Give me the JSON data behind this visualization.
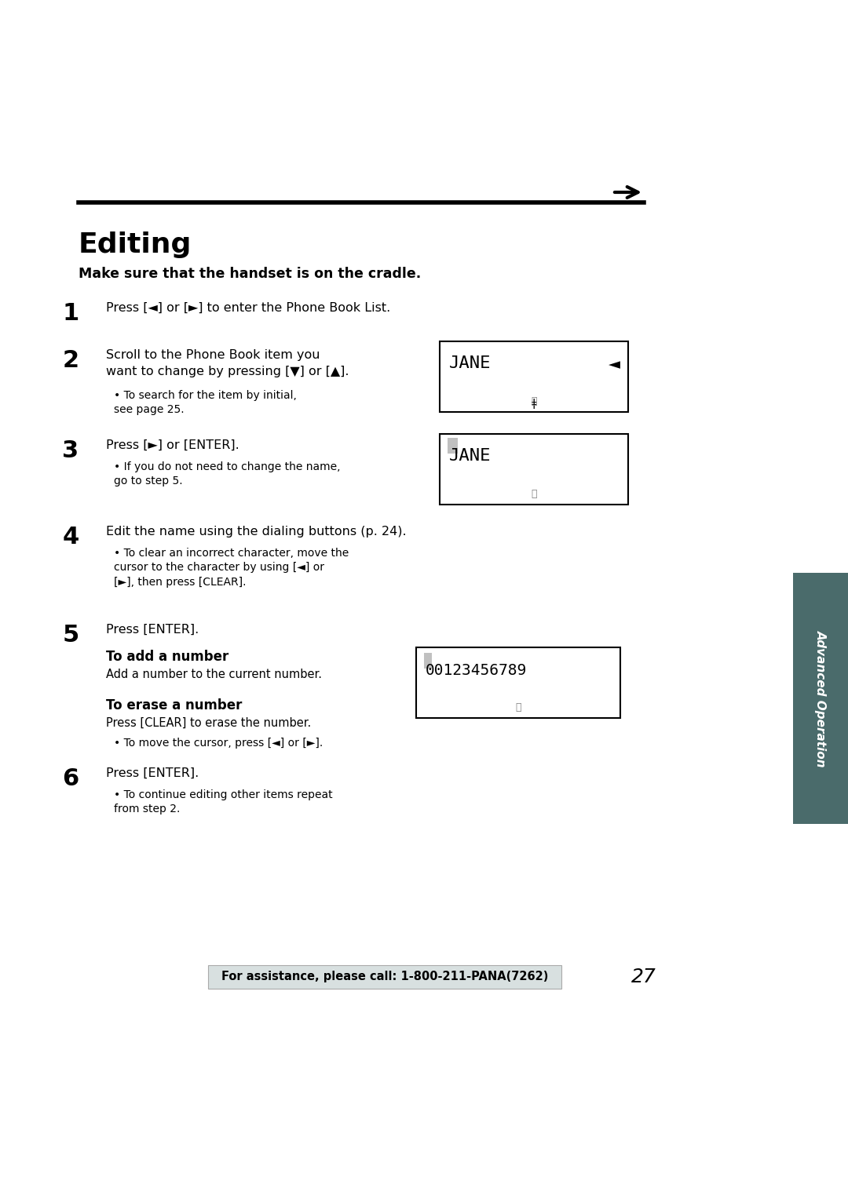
{
  "bg_color": "#ffffff",
  "page_number": "27",
  "title": "Editing",
  "subtitle": "Make sure that the handset is on the cradle.",
  "step1_num": "1",
  "step1_text": "Press [◄] or [►] to enter the Phone Book List.",
  "step2_num": "2",
  "step2_text": "Scroll to the Phone Book item you\nwant to change by pressing [▼] or [▲].",
  "step2_bullet": "To search for the item by initial,\nsee page 25.",
  "step2_display_line1": "JANE",
  "step2_display_arrow": "◄",
  "step3_num": "3",
  "step3_text": "Press [►] or [ENTER].",
  "step3_bullet": "If you do not need to change the name,\ngo to step 5.",
  "step3_display_line1": "JANE",
  "step4_num": "4",
  "step4_text": "Edit the name using the dialing buttons (p. 24).",
  "step4_bullet": "To clear an incorrect character, move the\ncursor to the character by using [◄] or\n[►], then press [CLEAR].",
  "step5_num": "5",
  "step5_text": "Press [ENTER].",
  "to_add_label": "To add a number",
  "to_add_text": "Add a number to the current number.",
  "to_erase_label": "To erase a number",
  "to_erase_text": "Press [CLEAR] to erase the number.",
  "to_move_bullet": "To move the cursor, press [◄] or [►].",
  "number_display": "00123456789",
  "step6_num": "6",
  "step6_text": "Press [ENTER].",
  "step6_bullet": "To continue editing other items repeat\nfrom step 2.",
  "footer_text": "For assistance, please call: 1-800-211-PANA(7262)",
  "sidebar_text": "Advanced Operation",
  "sidebar_color": "#4a6b6b",
  "line_color": "#000000",
  "display_bg": "#ffffff",
  "display_border": "#000000"
}
